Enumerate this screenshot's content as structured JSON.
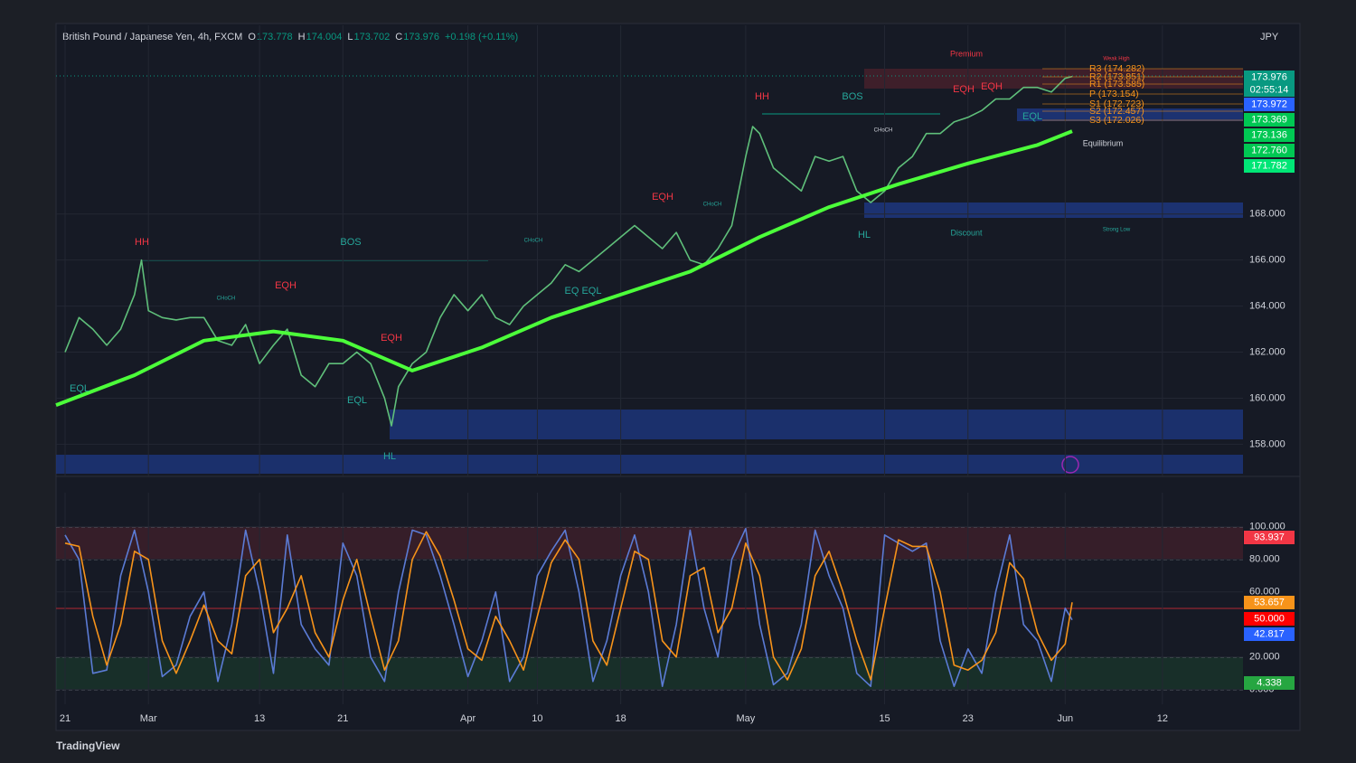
{
  "header": {
    "symbol": "British Pound / Japanese Yen, 4h, FXCM",
    "ohlc": [
      {
        "key": "O",
        "value": "173.778"
      },
      {
        "key": "H",
        "value": "174.004"
      },
      {
        "key": "L",
        "value": "173.702"
      },
      {
        "key": "C",
        "value": "173.976"
      }
    ],
    "change": "+0.198 (+0.11%)",
    "currency": "JPY",
    "countdown": "02:55:14"
  },
  "brand": "TradingView",
  "chart_data": [
    {
      "type": "line",
      "xlim": [
        -0.65,
        84.8
      ],
      "ylim": [
        156.6,
        176.2
      ],
      "yticks": [
        {
          "value": 158,
          "label": "158.000"
        },
        {
          "value": 160,
          "label": "160.000"
        },
        {
          "value": 162,
          "label": "162.000"
        },
        {
          "value": 164,
          "label": "164.000"
        },
        {
          "value": 166,
          "label": "166.000"
        },
        {
          "value": 168,
          "label": "168.000"
        }
      ],
      "grid": true,
      "series": [
        {
          "name": "Price",
          "color": "#5fbf7a",
          "x": [
            0,
            1,
            2,
            3,
            4,
            5,
            5.5,
            6,
            7,
            8,
            9,
            10,
            11,
            12,
            13,
            14,
            15,
            16,
            17,
            18,
            19,
            20,
            21,
            22,
            23,
            23.5,
            24,
            25,
            26,
            27,
            28,
            29,
            30,
            31,
            32,
            33,
            34,
            35,
            36,
            37,
            38,
            39,
            40,
            41,
            42,
            43,
            44,
            45,
            46,
            47,
            48,
            49,
            49.5,
            50,
            51,
            52,
            53,
            54,
            55,
            56,
            57,
            58,
            59,
            60,
            61,
            62,
            63,
            64,
            65,
            66,
            67,
            68,
            69,
            70,
            71,
            72,
            72.5
          ],
          "values": [
            162.0,
            163.5,
            163.0,
            162.3,
            163.0,
            164.5,
            166.0,
            163.8,
            163.5,
            163.4,
            163.5,
            163.5,
            162.5,
            162.3,
            163.2,
            161.5,
            162.3,
            163.0,
            161.0,
            160.5,
            161.5,
            161.5,
            162.0,
            161.5,
            160.0,
            158.8,
            160.5,
            161.5,
            162.0,
            163.5,
            164.5,
            163.8,
            164.5,
            163.5,
            163.2,
            164.0,
            164.5,
            165.0,
            165.8,
            165.5,
            166.0,
            166.5,
            167.0,
            167.5,
            167.0,
            166.5,
            167.2,
            166.0,
            165.8,
            166.5,
            167.5,
            170.5,
            171.8,
            171.5,
            170.0,
            169.5,
            169.0,
            170.5,
            170.3,
            170.5,
            169.0,
            168.5,
            169.0,
            170.0,
            170.5,
            171.5,
            171.5,
            172.0,
            172.2,
            172.5,
            173.0,
            173.0,
            173.5,
            173.5,
            173.3,
            173.9,
            173.976
          ]
        },
        {
          "name": "EMA",
          "color": "#4cff3a",
          "x": [
            -0.65,
            5,
            10,
            15,
            20,
            25,
            30,
            35,
            40,
            45,
            50,
            55,
            60,
            65,
            70,
            72.5
          ],
          "values": [
            159.7,
            161.0,
            162.5,
            162.9,
            162.5,
            161.2,
            162.2,
            163.5,
            164.5,
            165.5,
            167.0,
            168.3,
            169.3,
            170.2,
            171.0,
            171.6
          ]
        }
      ],
      "price_tags": [
        {
          "value": 173.976,
          "label": "173.976",
          "color": "#089981"
        },
        {
          "value": 173.972,
          "label": "173.972",
          "color": "#2962ff"
        },
        {
          "value": 173.369,
          "label": "173.369",
          "color": "#00c853"
        },
        {
          "value": 173.136,
          "label": "173.136",
          "color": "#00c853"
        },
        {
          "value": 172.76,
          "label": "172.760",
          "color": "#00c853"
        },
        {
          "value": 171.782,
          "label": "171.782",
          "color": "#00e676"
        }
      ],
      "pivots": [
        "R3 (174.282)",
        "R2 (173.851)",
        "R1 (173.585)",
        "P (173.154)",
        "S1 (172.723)",
        "S2 (172.457)",
        "S3 (172.026)"
      ],
      "annotations": [
        "HH",
        "BOS",
        "EQH",
        "EQH",
        "EQL",
        "EQL",
        "HL",
        "EQH",
        "HH",
        "BOS",
        "EQH",
        "EQH",
        "HL",
        "EQL",
        "Premium",
        "Equilibrium",
        "Discount",
        "Weak High",
        "Strong Low",
        "CHoCH",
        "CHoCH",
        "CHoCH",
        "CHoCH",
        "EQ EQL"
      ]
    },
    {
      "type": "line",
      "xlim": [
        -0.65,
        84.8
      ],
      "ylim": [
        -9,
        121
      ],
      "yticks": [
        {
          "value": 0,
          "label": "0.000"
        },
        {
          "value": 20,
          "label": "20.000"
        },
        {
          "value": 60,
          "label": "60.000"
        },
        {
          "value": 80,
          "label": "80.000"
        },
        {
          "value": 100,
          "label": "100.000"
        }
      ],
      "xticks": [
        {
          "value": 0,
          "label": "21"
        },
        {
          "value": 6,
          "label": "Mar"
        },
        {
          "value": 14,
          "label": "13"
        },
        {
          "value": 20,
          "label": "21"
        },
        {
          "value": 29,
          "label": "Apr"
        },
        {
          "value": 34,
          "label": "10"
        },
        {
          "value": 40,
          "label": "18"
        },
        {
          "value": 49,
          "label": "May"
        },
        {
          "value": 59,
          "label": "15"
        },
        {
          "value": 65,
          "label": "23"
        },
        {
          "value": 72,
          "label": "Jun"
        },
        {
          "value": 79,
          "label": "12"
        }
      ],
      "grid": true,
      "x": [
        0,
        1,
        2,
        3,
        4,
        5,
        6,
        7,
        8,
        9,
        10,
        11,
        12,
        13,
        14,
        15,
        16,
        17,
        18,
        19,
        20,
        21,
        22,
        23,
        24,
        25,
        26,
        27,
        28,
        29,
        30,
        31,
        32,
        33,
        34,
        35,
        36,
        37,
        38,
        39,
        40,
        41,
        42,
        43,
        44,
        45,
        46,
        47,
        48,
        49,
        50,
        51,
        52,
        53,
        54,
        55,
        56,
        57,
        58,
        59,
        60,
        61,
        62,
        63,
        64,
        65,
        66,
        67,
        68,
        69,
        70,
        71,
        72,
        72.5
      ],
      "series": [
        {
          "name": "%K",
          "color": "#5b7bd5",
          "values": [
            95,
            80,
            10,
            12,
            70,
            98,
            60,
            8,
            15,
            45,
            60,
            5,
            40,
            98,
            60,
            10,
            95,
            40,
            25,
            15,
            90,
            70,
            20,
            5,
            60,
            98,
            95,
            70,
            40,
            8,
            30,
            60,
            5,
            20,
            70,
            85,
            98,
            60,
            5,
            30,
            70,
            95,
            60,
            2,
            40,
            98,
            50,
            20,
            80,
            99,
            40,
            3,
            10,
            40,
            98,
            70,
            50,
            10,
            2,
            95,
            90,
            85,
            90,
            30,
            2,
            25,
            10,
            60,
            95,
            40,
            30,
            5,
            50,
            42.817
          ]
        },
        {
          "name": "%D",
          "color": "#f7931a",
          "values": [
            90,
            88,
            45,
            15,
            40,
            85,
            80,
            30,
            10,
            30,
            52,
            30,
            22,
            70,
            80,
            35,
            50,
            70,
            35,
            20,
            55,
            80,
            45,
            12,
            30,
            80,
            97,
            82,
            55,
            25,
            18,
            45,
            30,
            12,
            45,
            78,
            92,
            80,
            30,
            15,
            50,
            85,
            80,
            30,
            20,
            70,
            75,
            35,
            50,
            90,
            70,
            20,
            6,
            25,
            70,
            85,
            60,
            30,
            6,
            50,
            92,
            88,
            88,
            60,
            15,
            12,
            18,
            35,
            78,
            68,
            35,
            18,
            28,
            53.657
          ]
        }
      ],
      "price_tags": [
        {
          "value": 93.937,
          "label": "93.937",
          "color": "#f23645"
        },
        {
          "value": 53.657,
          "label": "53.657",
          "color": "#f7931a"
        },
        {
          "value": 50,
          "label": "50.000",
          "color": "#ff0000"
        },
        {
          "value": 42.817,
          "label": "42.817",
          "color": "#2962ff"
        },
        {
          "value": 4.338,
          "label": "4.338",
          "color": "#26a641"
        }
      ]
    }
  ]
}
